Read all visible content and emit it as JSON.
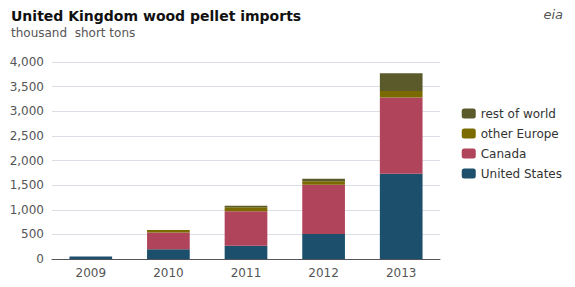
{
  "chart_data": {
    "type": "bar",
    "title": "United Kingdom wood pellet imports",
    "subtitle": "thousand  short tons",
    "annotations": [
      "eia"
    ],
    "categories": [
      "2009",
      "2010",
      "2011",
      "2012",
      "2013"
    ],
    "series": [
      {
        "name": "United States",
        "color": "#1b4f6b",
        "values": [
          50,
          200,
          270,
          510,
          1730
        ]
      },
      {
        "name": "Canada",
        "color": "#b0445a",
        "values": [
          0,
          340,
          700,
          1000,
          1550
        ]
      },
      {
        "name": "other Europe",
        "color": "#7a6a00",
        "values": [
          0,
          50,
          80,
          70,
          130
        ]
      },
      {
        "name": "rest of world",
        "color": "#5a5a2a",
        "values": [
          0,
          0,
          30,
          50,
          360
        ]
      }
    ],
    "stacked": true,
    "ylim": [
      0,
      4000
    ],
    "yticks": [
      0,
      500,
      {
        "value": 1000,
        "label": "1,000"
      },
      {
        "value": 1500,
        "label": "1,500"
      },
      {
        "value": 2000,
        "label": "2,000"
      },
      {
        "value": 2500,
        "label": "2,500"
      },
      {
        "value": 3000,
        "label": "3,000"
      },
      {
        "value": 3500,
        "label": "3,500"
      },
      {
        "value": 4000,
        "label": "4,000"
      }
    ],
    "grid": true,
    "legend": "right"
  }
}
